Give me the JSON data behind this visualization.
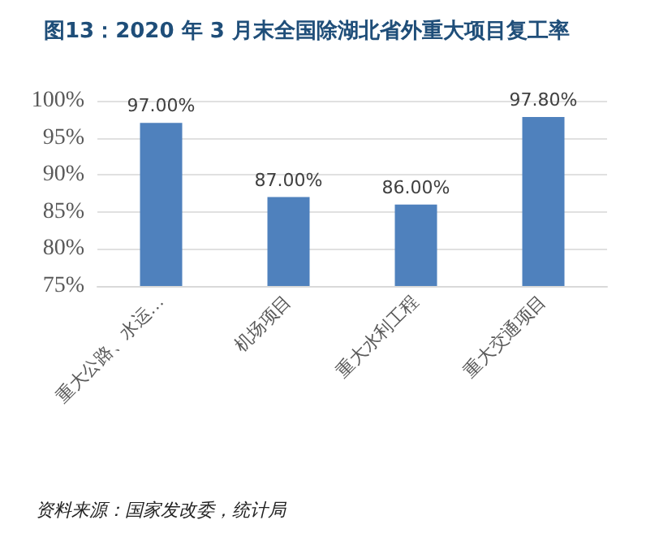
{
  "chart_data": {
    "type": "bar",
    "title": "图13：2020 年 3 月末全国除湖北省外重大项目复工率",
    "categories": [
      "重大公路、水运…",
      "机场项目",
      "重大水利工程",
      "重大交通项目"
    ],
    "values": [
      97,
      87,
      86,
      97.8
    ],
    "value_labels": [
      "97.00%",
      "87.00%",
      "86.00%",
      "97.80%"
    ],
    "color": "#4f81bd",
    "ylim": [
      75,
      100
    ],
    "yticks": [
      {
        "value": 75,
        "label": "75%"
      },
      {
        "value": 80,
        "label": "80%"
      },
      {
        "value": 85,
        "label": "85%"
      },
      {
        "value": 90,
        "label": "90%"
      },
      {
        "value": 95,
        "label": "95%"
      },
      {
        "value": 100,
        "label": "100%"
      }
    ],
    "grid": "y",
    "annotations": [
      "资料来源：国家发改委，统计局"
    ]
  }
}
